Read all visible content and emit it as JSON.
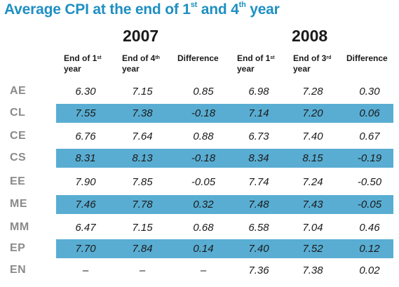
{
  "title": {
    "main": "Average CPI at the end of 1",
    "sup1": "st",
    "mid": " and 4",
    "sup2": "th",
    "end": " year"
  },
  "years": [
    "2007",
    "2008"
  ],
  "columns": [
    {
      "pre": "End of 1",
      "sup": "st",
      "post": "",
      "line2": "year"
    },
    {
      "pre": "End of 4",
      "sup": "th",
      "post": "",
      "line2": "year"
    },
    {
      "pre": "Difference",
      "sup": "",
      "post": "",
      "line2": ""
    },
    {
      "pre": "End of 1",
      "sup": "st",
      "post": "",
      "line2": "year"
    },
    {
      "pre": "End of 3",
      "sup": "rd",
      "post": "",
      "line2": "year"
    },
    {
      "pre": "Difference",
      "sup": "",
      "post": "",
      "line2": ""
    }
  ],
  "rows": [
    {
      "label": "AE",
      "values": [
        "6.30",
        "7.15",
        "0.85",
        "6.98",
        "7.28",
        "0.30"
      ],
      "shaded": false
    },
    {
      "label": "CL",
      "values": [
        "7.55",
        "7.38",
        "-0.18",
        "7.14",
        "7.20",
        "0.06"
      ],
      "shaded": true
    },
    {
      "label": "CE",
      "values": [
        "6.76",
        "7.64",
        "0.88",
        "6.73",
        "7.40",
        "0.67"
      ],
      "shaded": false
    },
    {
      "label": "CS",
      "values": [
        "8.31",
        "8.13",
        "-0.18",
        "8.34",
        "8.15",
        "-0.19"
      ],
      "shaded": true
    },
    {
      "label": "EE",
      "values": [
        "7.90",
        "7.85",
        "-0.05",
        "7.74",
        "7.24",
        "-0.50"
      ],
      "shaded": false
    },
    {
      "label": "ME",
      "values": [
        "7.46",
        "7.78",
        "0.32",
        "7.48",
        "7.43",
        "-0.05"
      ],
      "shaded": true
    },
    {
      "label": "MM",
      "values": [
        "6.47",
        "7.15",
        "0.68",
        "6.58",
        "7.04",
        "0.46"
      ],
      "shaded": false
    },
    {
      "label": "EP",
      "values": [
        "7.70",
        "7.84",
        "0.14",
        "7.40",
        "7.52",
        "0.12"
      ],
      "shaded": true
    },
    {
      "label": "EN",
      "values": [
        "–",
        "–",
        "–",
        "7.36",
        "7.38",
        "0.02"
      ],
      "shaded": false
    }
  ],
  "colors": {
    "title": "#1f8fc2",
    "band": "#59add2",
    "row_label": "#8a8a8a",
    "text": "#1a1a1a"
  }
}
